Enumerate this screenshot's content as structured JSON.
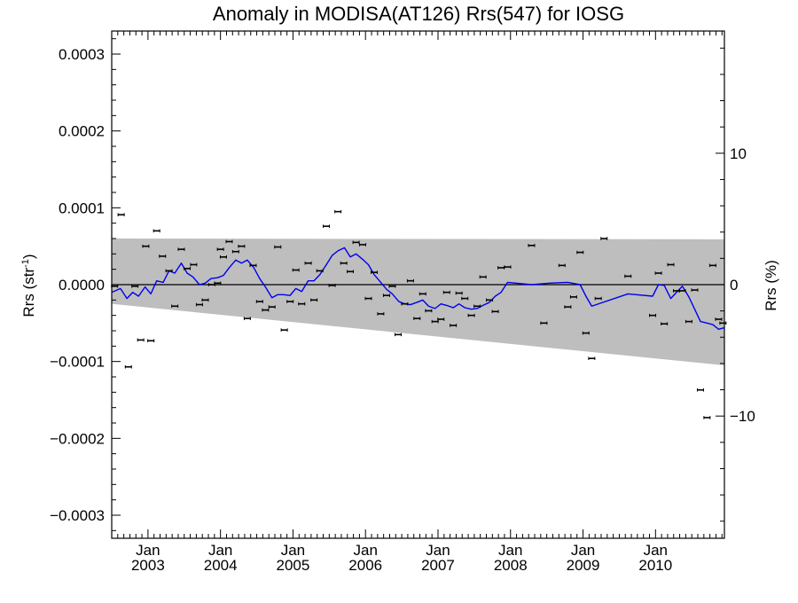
{
  "chart_data": {
    "type": "line",
    "title": "Anomaly in MODISA(AT126) Rrs(547) for IOSG",
    "ylabel_left": {
      "text": "Rrs (str",
      "sup": "-1",
      "close": ")"
    },
    "ylabel_right": "Rrs (%)",
    "x_axis": {
      "units": "year",
      "range": [
        2002.5,
        2010.95
      ],
      "ticks": [
        {
          "value": 2003.0,
          "month": "Jan",
          "year": "2003"
        },
        {
          "value": 2004.0,
          "month": "Jan",
          "year": "2004"
        },
        {
          "value": 2005.0,
          "month": "Jan",
          "year": "2005"
        },
        {
          "value": 2006.0,
          "month": "Jan",
          "year": "2006"
        },
        {
          "value": 2007.0,
          "month": "Jan",
          "year": "2007"
        },
        {
          "value": 2008.0,
          "month": "Jan",
          "year": "2008"
        },
        {
          "value": 2009.0,
          "month": "Jan",
          "year": "2009"
        },
        {
          "value": 2010.0,
          "month": "Jan",
          "year": "2010"
        }
      ]
    },
    "y_left": {
      "range": [
        -0.00033,
        0.00033
      ],
      "ticks": [
        {
          "value": 0.0003,
          "label": "0.0003"
        },
        {
          "value": 0.0002,
          "label": "0.0002"
        },
        {
          "value": 0.0001,
          "label": "0.0001"
        },
        {
          "value": 0.0,
          "label": "0.0000"
        },
        {
          "value": -0.0001,
          "label": "−0.0001"
        },
        {
          "value": -0.0002,
          "label": "−0.0002"
        },
        {
          "value": -0.0003,
          "label": "−0.0003"
        }
      ]
    },
    "y_right": {
      "range": [
        -19.3,
        19.3
      ],
      "ticks": [
        {
          "value": 10,
          "label": "10"
        },
        {
          "value": 0,
          "label": "0"
        },
        {
          "value": -10,
          "label": "−10"
        }
      ]
    },
    "band": {
      "color": "#bebebe",
      "upper": [
        [
          2002.5,
          6e-05
        ],
        [
          2010.95,
          5.9e-05
        ]
      ],
      "lower": [
        [
          2002.5,
          -2.5e-05
        ],
        [
          2010.95,
          -0.000105
        ]
      ]
    },
    "zero_line": true,
    "points": {
      "color": "#000000",
      "x": [
        2002.54,
        2002.63,
        2002.73,
        2002.82,
        2002.9,
        2002.97,
        2003.04,
        2003.12,
        2003.2,
        2003.29,
        2003.37,
        2003.46,
        2003.54,
        2003.63,
        2003.71,
        2003.79,
        2003.88,
        2003.96,
        2004.0,
        2004.04,
        2004.12,
        2004.21,
        2004.29,
        2004.37,
        2004.45,
        2004.54,
        2004.62,
        2004.71,
        2004.79,
        2004.88,
        2004.96,
        2005.04,
        2005.12,
        2005.21,
        2005.29,
        2005.37,
        2005.46,
        2005.54,
        2005.62,
        2005.7,
        2005.79,
        2005.87,
        2005.96,
        2006.04,
        2006.12,
        2006.21,
        2006.29,
        2006.37,
        2006.45,
        2006.54,
        2006.62,
        2006.71,
        2006.79,
        2006.87,
        2006.96,
        2007.04,
        2007.12,
        2007.21,
        2007.29,
        2007.37,
        2007.46,
        2007.54,
        2007.62,
        2007.71,
        2007.79,
        2007.87,
        2007.96,
        2008.29,
        2008.46,
        2008.71,
        2008.79,
        2008.87,
        2008.96,
        2009.04,
        2009.12,
        2009.21,
        2009.29,
        2009.62,
        2009.96,
        2010.04,
        2010.12,
        2010.21,
        2010.29,
        2010.37,
        2010.46,
        2010.54,
        2010.62,
        2010.71,
        2010.79,
        2010.87,
        2010.93
      ],
      "y": [
        -2e-06,
        9.1e-05,
        -0.000107,
        -2e-06,
        -7.2e-05,
        5e-05,
        -7.3e-05,
        7e-05,
        3.7e-05,
        1.8e-05,
        -2.8e-05,
        4.6e-05,
        2.1e-05,
        2.6e-05,
        -2.6e-05,
        -2e-05,
        0.0,
        2e-06,
        4.6e-05,
        3.6e-05,
        5.6e-05,
        4.3e-05,
        5e-05,
        -4.4e-05,
        2.5e-05,
        -2.2e-05,
        -3.3e-05,
        -2.9e-05,
        4.9e-05,
        -5.9e-05,
        -2.2e-05,
        1.9e-05,
        -2.5e-05,
        2.8e-05,
        -2e-05,
        1.8e-05,
        7.6e-05,
        -1e-06,
        9.5e-05,
        2.8e-05,
        1.7e-05,
        5.5e-05,
        5.2e-05,
        -1.8e-05,
        1.6e-05,
        -3.8e-05,
        -1.4e-05,
        -2e-06,
        -6.5e-05,
        -2.5e-05,
        5e-06,
        -4.4e-05,
        -1.2e-05,
        -3.4e-05,
        -4.8e-05,
        -4.5e-05,
        -1e-05,
        -5.3e-05,
        -1.1e-05,
        -1.8e-05,
        -4e-05,
        -2.8e-05,
        1e-05,
        -2e-05,
        -3.5e-05,
        2.2e-05,
        2.3e-05,
        5.1e-05,
        -5e-05,
        2.5e-05,
        -2.9e-05,
        -1.6e-05,
        4.2e-05,
        -6.3e-05,
        -9.6e-05,
        -1.8e-05,
        6e-05,
        1.1e-05,
        -4e-05,
        1.5e-05,
        -5.1e-05,
        2.6e-05,
        -8e-06,
        -8e-06,
        -4.8e-05,
        -7e-06,
        -0.000137,
        -0.000173,
        2.5e-05,
        -4.5e-05,
        -5e-05
      ]
    },
    "series": [
      {
        "color": "#0000ee",
        "x": [
          2002.5,
          2002.62,
          2002.71,
          2002.79,
          2002.87,
          2002.96,
          2003.04,
          2003.12,
          2003.21,
          2003.29,
          2003.37,
          2003.46,
          2003.54,
          2003.62,
          2003.71,
          2003.79,
          2003.87,
          2003.96,
          2004.04,
          2004.12,
          2004.21,
          2004.29,
          2004.37,
          2004.46,
          2004.54,
          2004.62,
          2004.71,
          2004.79,
          2004.87,
          2004.96,
          2005.04,
          2005.12,
          2005.21,
          2005.29,
          2005.37,
          2005.46,
          2005.54,
          2005.62,
          2005.71,
          2005.79,
          2005.87,
          2005.96,
          2006.04,
          2006.12,
          2006.21,
          2006.29,
          2006.37,
          2006.46,
          2006.54,
          2006.62,
          2006.71,
          2006.79,
          2006.87,
          2006.96,
          2007.04,
          2007.12,
          2007.21,
          2007.29,
          2007.37,
          2007.46,
          2007.54,
          2007.62,
          2007.71,
          2007.79,
          2007.87,
          2007.96,
          2008.29,
          2008.54,
          2008.79,
          2008.96,
          2009.04,
          2009.12,
          2009.62,
          2009.96,
          2010.04,
          2010.12,
          2010.21,
          2010.29,
          2010.37,
          2010.46,
          2010.54,
          2010.62,
          2010.71,
          2010.79,
          2010.87,
          2010.95
        ],
        "y": [
          -1e-05,
          -5e-06,
          -1.8e-05,
          -1e-05,
          -1.5e-05,
          -3e-06,
          -1.2e-05,
          5e-06,
          3e-06,
          1.8e-05,
          1.5e-05,
          2.8e-05,
          1.5e-05,
          1e-05,
          0.0,
          2e-06,
          8e-06,
          9e-06,
          1.2e-05,
          2.2e-05,
          3.2e-05,
          2.8e-05,
          3.2e-05,
          2.2e-05,
          8e-06,
          -3e-06,
          -1.7e-05,
          -1.3e-05,
          -1.3e-05,
          -1.4e-05,
          -5e-06,
          -9e-06,
          5e-06,
          5e-06,
          1.3e-05,
          2.6e-05,
          3.8e-05,
          4.4e-05,
          4.8e-05,
          3.6e-05,
          4e-05,
          3.3e-05,
          2.6e-05,
          1.3e-05,
          3e-06,
          -6e-06,
          -1.2e-05,
          -2.2e-05,
          -2.5e-05,
          -2.6e-05,
          -2.3e-05,
          -2e-05,
          -2.8e-05,
          -3.1e-05,
          -2.5e-05,
          -2.7e-05,
          -3e-05,
          -2.5e-05,
          -3e-05,
          -3.2e-05,
          -3.1e-05,
          -2.7e-05,
          -2.3e-05,
          -1.5e-05,
          -1e-05,
          3e-06,
          0.0,
          2e-06,
          3e-06,
          0.0,
          -1.5e-05,
          -2.8e-05,
          -1.2e-05,
          -1.5e-05,
          0.0,
          -1e-06,
          -1.8e-05,
          -1e-05,
          -2e-06,
          -1.6e-05,
          -3.2e-05,
          -4.8e-05,
          -5e-05,
          -5.2e-05,
          -5.8e-05,
          -5.6e-05
        ]
      }
    ],
    "grid": false,
    "legend": "none"
  }
}
